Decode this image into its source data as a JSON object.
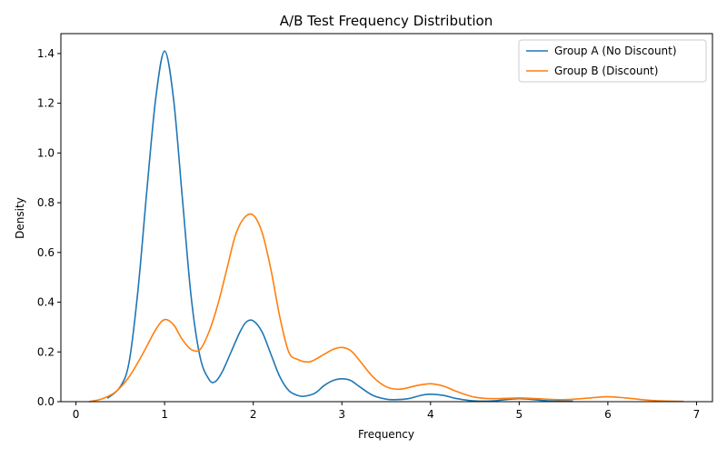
{
  "chart_data": {
    "type": "line",
    "title": "A/B Test Frequency Distribution",
    "xlabel": "Frequency",
    "ylabel": "Density",
    "xlim": [
      -0.17,
      7.18
    ],
    "ylim": [
      0,
      1.48
    ],
    "xticks": [
      0,
      1,
      2,
      3,
      4,
      5,
      6,
      7
    ],
    "yticks": [
      0.0,
      0.2,
      0.4,
      0.6,
      0.8,
      1.0,
      1.2,
      1.4
    ],
    "xtick_labels": [
      "0",
      "1",
      "2",
      "3",
      "4",
      "5",
      "6",
      "7"
    ],
    "ytick_labels": [
      "0.0",
      "0.2",
      "0.4",
      "0.6",
      "0.8",
      "1.0",
      "1.2",
      "1.4"
    ],
    "grid": false,
    "legend_position": "upper right",
    "series": [
      {
        "name": "Group A (No Discount)",
        "color": "#1f77b4",
        "x": [
          0.36,
          0.5,
          0.6,
          0.7,
          0.8,
          0.9,
          1.0,
          1.1,
          1.2,
          1.3,
          1.4,
          1.5,
          1.57,
          1.65,
          1.75,
          1.85,
          1.92,
          2.0,
          2.1,
          2.2,
          2.3,
          2.4,
          2.5,
          2.58,
          2.7,
          2.8,
          2.9,
          3.0,
          3.1,
          3.2,
          3.35,
          3.5,
          3.6,
          3.75,
          3.9,
          4.0,
          4.15,
          4.3,
          4.5,
          4.7,
          5.0,
          5.3,
          5.6
        ],
        "y": [
          0.015,
          0.06,
          0.16,
          0.45,
          0.85,
          1.22,
          1.41,
          1.22,
          0.82,
          0.42,
          0.18,
          0.09,
          0.08,
          0.12,
          0.2,
          0.28,
          0.32,
          0.325,
          0.28,
          0.19,
          0.1,
          0.045,
          0.025,
          0.022,
          0.035,
          0.065,
          0.085,
          0.092,
          0.085,
          0.06,
          0.025,
          0.01,
          0.008,
          0.012,
          0.026,
          0.03,
          0.025,
          0.012,
          0.003,
          0.003,
          0.012,
          0.004,
          0.002
        ]
      },
      {
        "name": "Group B (Discount)",
        "color": "#ff7f0e",
        "x": [
          0.15,
          0.3,
          0.45,
          0.6,
          0.75,
          0.9,
          1.0,
          1.1,
          1.2,
          1.3,
          1.4,
          1.5,
          1.6,
          1.7,
          1.8,
          1.9,
          2.0,
          2.1,
          2.2,
          2.3,
          2.4,
          2.5,
          2.63,
          2.75,
          2.9,
          3.0,
          3.1,
          3.2,
          3.35,
          3.5,
          3.65,
          3.85,
          4.0,
          4.15,
          4.3,
          4.5,
          4.7,
          5.0,
          5.2,
          5.5,
          5.8,
          6.0,
          6.2,
          6.5,
          6.85
        ],
        "y": [
          0.0,
          0.012,
          0.04,
          0.1,
          0.19,
          0.29,
          0.33,
          0.31,
          0.25,
          0.21,
          0.21,
          0.28,
          0.39,
          0.53,
          0.67,
          0.74,
          0.75,
          0.68,
          0.53,
          0.34,
          0.2,
          0.17,
          0.16,
          0.18,
          0.21,
          0.218,
          0.205,
          0.165,
          0.1,
          0.06,
          0.05,
          0.065,
          0.072,
          0.062,
          0.04,
          0.018,
          0.012,
          0.015,
          0.012,
          0.008,
          0.015,
          0.02,
          0.015,
          0.005,
          0.001
        ]
      }
    ]
  }
}
